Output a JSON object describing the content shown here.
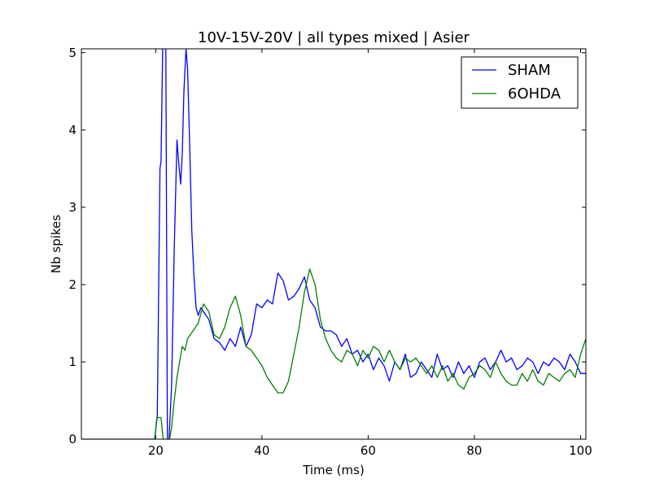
{
  "chart_data": {
    "type": "line",
    "title": "10V-15V-20V | all types mixed | Asier",
    "xlabel": "Time (ms)",
    "ylabel": "Nb spikes",
    "xlim": [
      6,
      101
    ],
    "ylim": [
      0,
      5.05
    ],
    "xticks": [
      20,
      40,
      60,
      80,
      100
    ],
    "xtick_labels": [
      "20",
      "40",
      "60",
      "80",
      "100"
    ],
    "yticks": [
      0,
      1,
      2,
      3,
      4,
      5
    ],
    "ytick_labels": [
      "0",
      "1",
      "2",
      "3",
      "4",
      "5"
    ],
    "grid": false,
    "legend_position": "top-right",
    "series": [
      {
        "name": "SHAM",
        "color": "#0000ff",
        "x": [
          6,
          19.8,
          20.3,
          20.8,
          21.0,
          21.3,
          21.6,
          21.9,
          22.2,
          22.5,
          23.0,
          23.5,
          24.0,
          24.3,
          24.7,
          25.0,
          25.3,
          25.7,
          26.0,
          26.4,
          26.8,
          27.2,
          27.6,
          28.0,
          28.5,
          29,
          30,
          31,
          32,
          33,
          34,
          35,
          36,
          37,
          38,
          39,
          40,
          41,
          42,
          43,
          44,
          45,
          46,
          47,
          48,
          49,
          50,
          51,
          52,
          53,
          54,
          55,
          56,
          57,
          58,
          59,
          60,
          61,
          62,
          63,
          64,
          65,
          66,
          67,
          68,
          69,
          70,
          71,
          72,
          73,
          74,
          75,
          76,
          77,
          78,
          79,
          80,
          81,
          82,
          83,
          84,
          85,
          86,
          87,
          88,
          89,
          90,
          91,
          92,
          93,
          94,
          95,
          96,
          97,
          98,
          99,
          100,
          101
        ],
        "values": [
          0,
          0,
          0.3,
          3.5,
          3.6,
          5.05,
          5.05,
          5.05,
          0,
          0,
          0.7,
          2.5,
          3.87,
          3.6,
          3.3,
          3.7,
          4.5,
          5.05,
          4.8,
          3.8,
          2.7,
          2.1,
          1.7,
          1.6,
          1.7,
          1.65,
          1.55,
          1.3,
          1.25,
          1.15,
          1.3,
          1.2,
          1.45,
          1.2,
          1.35,
          1.75,
          1.7,
          1.8,
          1.75,
          2.15,
          2.05,
          1.8,
          1.85,
          1.95,
          2.1,
          1.8,
          1.7,
          1.45,
          1.4,
          1.4,
          1.35,
          1.2,
          1.3,
          1.1,
          1.15,
          1.0,
          1.1,
          0.9,
          1.05,
          0.95,
          0.75,
          1.0,
          0.9,
          1.1,
          0.8,
          0.85,
          1.0,
          0.9,
          0.8,
          1.1,
          0.9,
          0.95,
          0.8,
          1.0,
          0.85,
          0.95,
          0.8,
          1.0,
          1.05,
          0.9,
          1.0,
          1.15,
          1.0,
          1.05,
          0.9,
          0.95,
          1.05,
          1.0,
          0.85,
          1.0,
          0.95,
          1.05,
          1.0,
          0.9,
          1.1,
          1.0,
          0.85,
          0.85
        ]
      },
      {
        "name": "6OHDA",
        "color": "#008000",
        "x": [
          6,
          19.8,
          20.2,
          21.0,
          21.4,
          22.6,
          23.0,
          23.4,
          24.0,
          24.5,
          25.0,
          25.5,
          26,
          27,
          28,
          29,
          30,
          31,
          32,
          33,
          34,
          35,
          36,
          37,
          38,
          39,
          40,
          41,
          42,
          43,
          44,
          45,
          46,
          47,
          48,
          49,
          50,
          51,
          52,
          53,
          54,
          55,
          56,
          57,
          58,
          59,
          60,
          61,
          62,
          63,
          64,
          65,
          66,
          67,
          68,
          69,
          70,
          71,
          72,
          73,
          74,
          75,
          76,
          77,
          78,
          79,
          80,
          81,
          82,
          83,
          84,
          85,
          86,
          87,
          88,
          89,
          90,
          91,
          92,
          93,
          94,
          95,
          96,
          97,
          98,
          99,
          100,
          101
        ],
        "values": [
          0,
          0,
          0.28,
          0.28,
          0,
          0,
          0.15,
          0.45,
          0.8,
          1.0,
          1.2,
          1.15,
          1.3,
          1.4,
          1.5,
          1.75,
          1.65,
          1.35,
          1.3,
          1.45,
          1.7,
          1.85,
          1.6,
          1.2,
          1.15,
          1.05,
          0.95,
          0.8,
          0.7,
          0.6,
          0.6,
          0.75,
          1.1,
          1.45,
          1.9,
          2.2,
          2.0,
          1.55,
          1.3,
          1.15,
          1.05,
          1.0,
          1.15,
          1.1,
          0.95,
          1.15,
          1.05,
          1.2,
          1.15,
          1.0,
          1.15,
          1.0,
          0.9,
          1.05,
          1.0,
          1.05,
          0.95,
          0.85,
          0.95,
          0.8,
          0.95,
          0.75,
          0.85,
          0.7,
          0.65,
          0.8,
          0.85,
          0.95,
          0.9,
          0.8,
          1.0,
          0.85,
          0.75,
          0.7,
          0.7,
          0.85,
          0.75,
          0.9,
          0.75,
          0.7,
          0.85,
          0.8,
          0.75,
          0.85,
          0.9,
          0.8,
          1.1,
          1.3
        ]
      }
    ]
  }
}
